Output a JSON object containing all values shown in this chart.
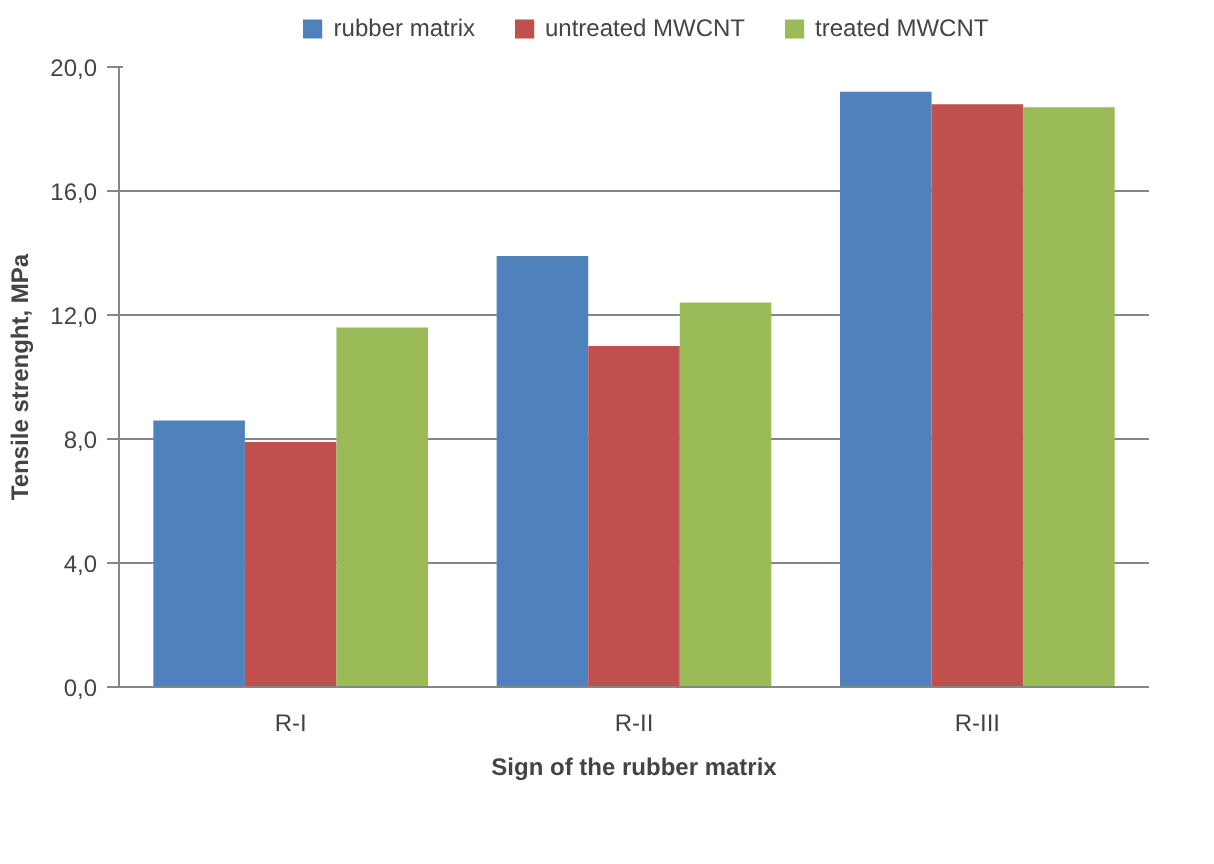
{
  "chart_data": {
    "type": "bar",
    "xlabel": "Sign of the rubber matrix",
    "ylabel": "Tensile strenght, MPa",
    "categories": [
      "R-I",
      "R-II",
      "R-III"
    ],
    "series": [
      {
        "name": "rubber matrix",
        "color": "#4f81bd",
        "values": [
          8.6,
          13.9,
          19.2
        ]
      },
      {
        "name": "untreated MWCNT",
        "color": "#c0504d",
        "values": [
          7.9,
          11.0,
          18.8
        ]
      },
      {
        "name": "treated MWCNT",
        "color": "#9bbb59",
        "values": [
          11.6,
          12.4,
          18.7
        ]
      }
    ],
    "ylim": [
      0,
      20
    ],
    "yticks": [
      {
        "value": 0,
        "label": "0,0"
      },
      {
        "value": 4,
        "label": "4,0"
      },
      {
        "value": 8,
        "label": "8,0"
      },
      {
        "value": 12,
        "label": "12,0"
      },
      {
        "value": 16,
        "label": "16,0"
      },
      {
        "value": 20,
        "label": "20,0"
      }
    ],
    "grid": "y",
    "legend": "top"
  }
}
